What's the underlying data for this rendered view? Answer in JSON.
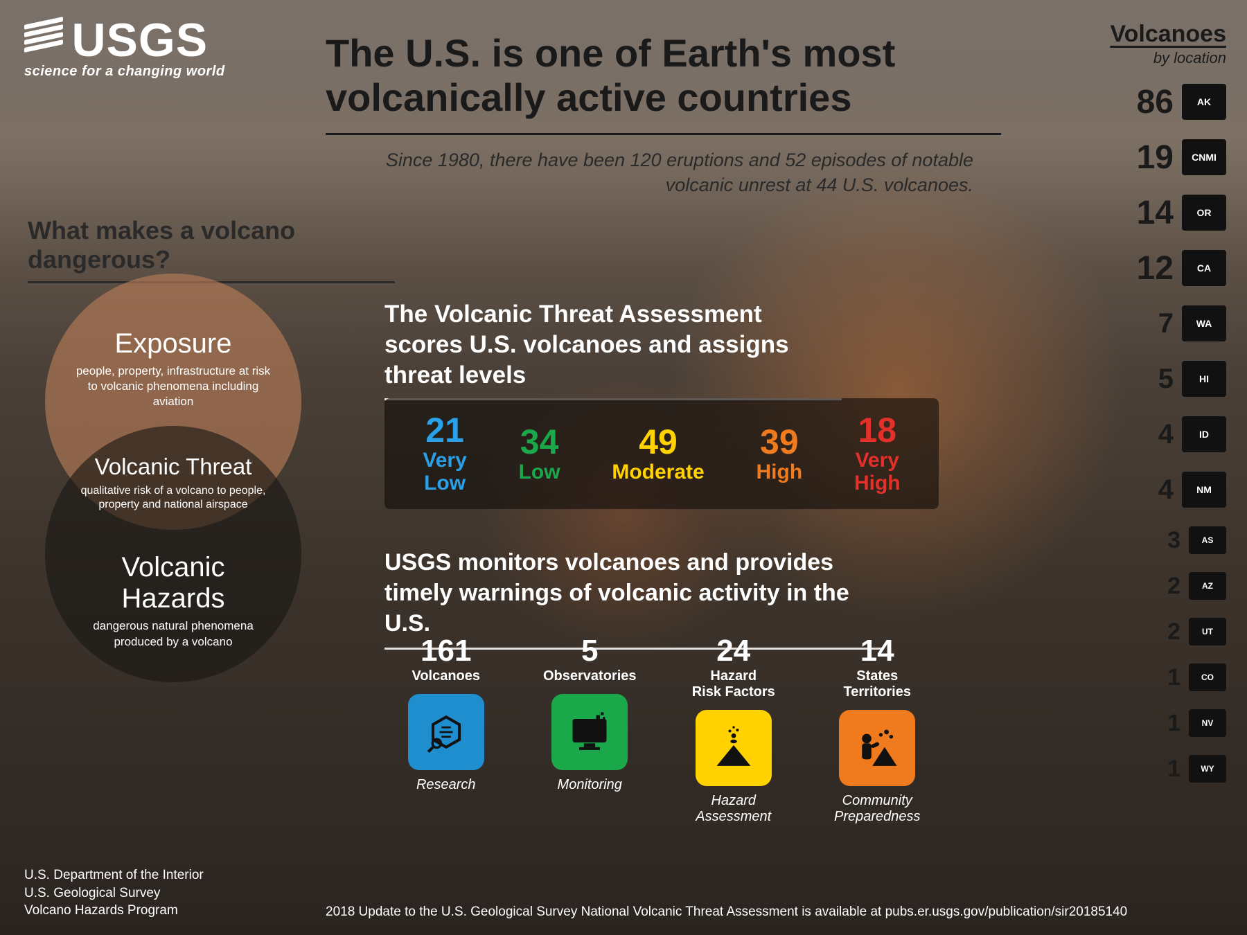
{
  "logo": {
    "name": "USGS",
    "tagline": "science for a changing world"
  },
  "headline": {
    "title": "The U.S. is one of Earth's most volcanically active countries",
    "subtitle": "Since 1980, there have been 120 eruptions and 52 episodes of notable volcanic unrest at 44 U.S. volcanoes."
  },
  "question": "What makes a volcano dangerous?",
  "venn": {
    "circle1_color": "rgba(188,126,88,.62)",
    "circle2_color": "rgba(25,22,20,.62)",
    "top": {
      "title": "Exposure",
      "desc": "people, property, infrastructure at risk to volcanic phenomena including aviation"
    },
    "overlap": {
      "title": "Volcanic Threat",
      "desc": "qualitative risk of a volcano to people, property and national airspace"
    },
    "bottom": {
      "title": "Volcanic Hazards",
      "desc": "dangerous natural phenomena produced by a volcano"
    }
  },
  "threat": {
    "heading": "The Volcanic Threat Assessment scores U.S. volcanoes and assigns threat levels",
    "bar_bg": "rgba(20,15,12,.65)",
    "levels": [
      {
        "n": "21",
        "label": "Very Low",
        "color": "#2aa0e8"
      },
      {
        "n": "34",
        "label": "Low",
        "color": "#1aa84b"
      },
      {
        "n": "49",
        "label": "Moderate",
        "color": "#ffd200"
      },
      {
        "n": "39",
        "label": "High",
        "color": "#f07a1e"
      },
      {
        "n": "18",
        "label": "Very High",
        "color": "#e4302b"
      }
    ]
  },
  "monitoring": {
    "heading": "USGS monitors volcanoes and provides timely warnings of volcanic activity in the U.S.",
    "stats": [
      {
        "n": "161",
        "label": "Volcanoes",
        "caption": "Research",
        "icon_bg": "#1e8ecf",
        "icon": "research"
      },
      {
        "n": "5",
        "label": "Observatories",
        "caption": "Monitoring",
        "icon_bg": "#1aa84b",
        "icon": "monitor"
      },
      {
        "n": "24",
        "label": "Hazard / Risk Factors",
        "caption": "Hazard Assessment",
        "icon_bg": "#ffd200",
        "icon": "hazard"
      },
      {
        "n": "14",
        "label": "States / Territories",
        "caption": "Community Preparedness",
        "icon_bg": "#f07a1e",
        "icon": "community"
      }
    ]
  },
  "locations": {
    "title": "Volcanoes",
    "subtitle": "by location",
    "items": [
      {
        "count": "86",
        "code": "AK",
        "size": "big"
      },
      {
        "count": "19",
        "code": "CNMI",
        "size": "big"
      },
      {
        "count": "14",
        "code": "OR",
        "size": "big"
      },
      {
        "count": "12",
        "code": "CA",
        "size": "big"
      },
      {
        "count": "7",
        "code": "WA",
        "size": ""
      },
      {
        "count": "5",
        "code": "HI",
        "size": ""
      },
      {
        "count": "4",
        "code": "ID",
        "size": ""
      },
      {
        "count": "4",
        "code": "NM",
        "size": ""
      },
      {
        "count": "3",
        "code": "AS",
        "size": "sm"
      },
      {
        "count": "2",
        "code": "AZ",
        "size": "sm"
      },
      {
        "count": "2",
        "code": "UT",
        "size": "sm"
      },
      {
        "count": "1",
        "code": "CO",
        "size": "sm"
      },
      {
        "count": "1",
        "code": "NV",
        "size": "sm"
      },
      {
        "count": "1",
        "code": "WY",
        "size": "sm"
      }
    ]
  },
  "footer": {
    "lines": [
      "U.S. Department of the Interior",
      "U.S. Geological Survey",
      "Volcano Hazards Program"
    ],
    "citation": "2018 Update to the U.S. Geological Survey National Volcanic Threat Assessment is available at pubs.er.usgs.gov/publication/sir20185140"
  },
  "style": {
    "text_dark": "#1a1a1a",
    "text_light": "#ffffff",
    "headline_fontsize": 56,
    "threat_num_fontsize": 50
  }
}
